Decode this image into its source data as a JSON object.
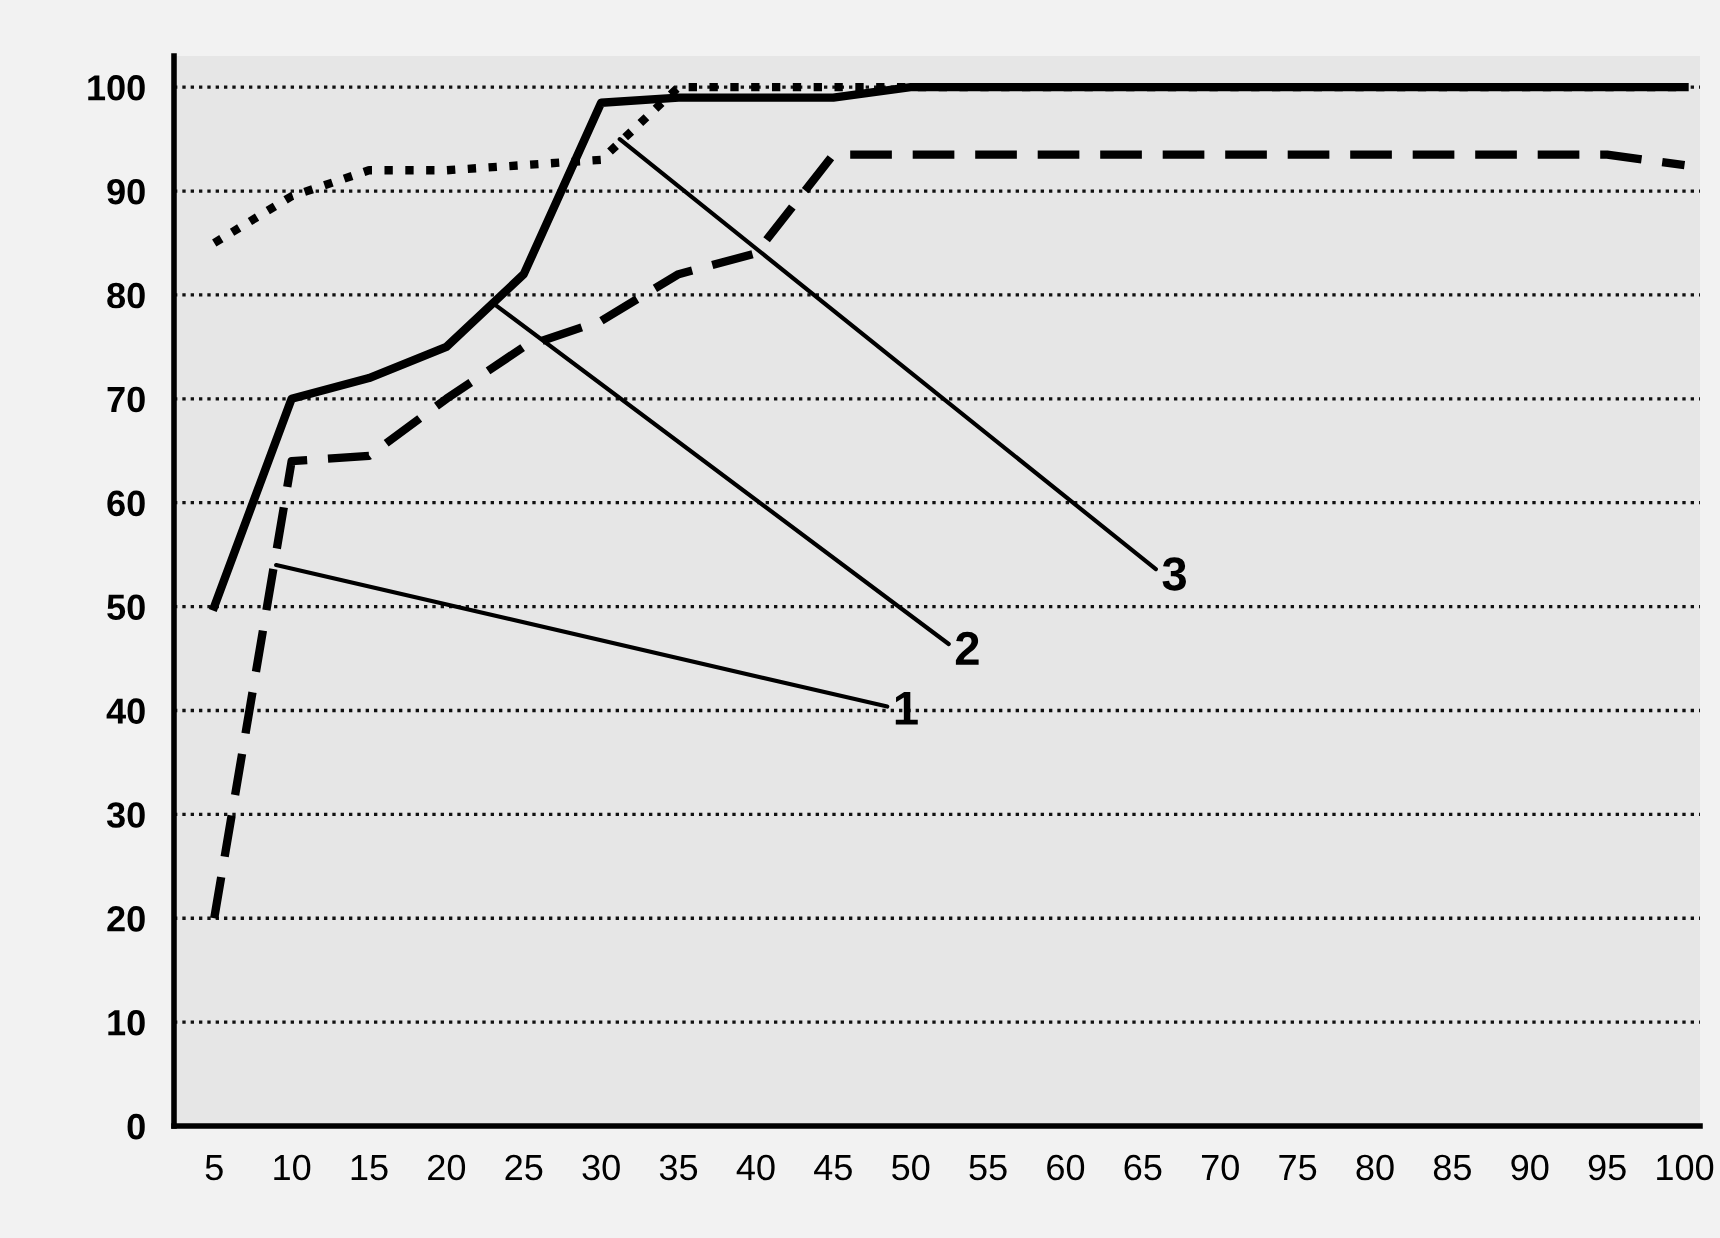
{
  "chart_data": {
    "type": "line",
    "x": [
      5,
      10,
      15,
      20,
      25,
      30,
      35,
      40,
      45,
      50,
      55,
      60,
      65,
      70,
      75,
      80,
      85,
      90,
      95,
      100
    ],
    "series": [
      {
        "color": "#000000",
        "line_style": "dotted",
        "values": [
          85,
          89.5,
          92,
          92,
          92.5,
          93,
          100,
          100,
          100,
          100,
          100,
          100,
          100,
          100,
          100,
          100,
          100,
          100,
          100,
          100
        ]
      },
      {
        "color": "#000000",
        "line_style": "dashed",
        "values": [
          20,
          64,
          64.5,
          70,
          75,
          77.5,
          82,
          84,
          93.5,
          93.5,
          93.5,
          93.5,
          93.5,
          93.5,
          93.5,
          93.5,
          93.5,
          93.5,
          93.5,
          92.5
        ]
      },
      {
        "color": "#000000",
        "line_style": "solid",
        "values": [
          50,
          70,
          72,
          75,
          82,
          98.5,
          99,
          99,
          99,
          100,
          100,
          100,
          100,
          100,
          100,
          100,
          100,
          100,
          100,
          100
        ]
      }
    ],
    "xlim": [
      2.4,
      101
    ],
    "xticks": [
      5,
      10,
      15,
      20,
      25,
      30,
      35,
      40,
      45,
      50,
      55,
      60,
      65,
      70,
      75,
      80,
      85,
      90,
      95,
      100
    ],
    "ylim": [
      0,
      103
    ],
    "yticks": [
      0,
      10,
      20,
      30,
      40,
      50,
      60,
      70,
      80,
      90,
      100
    ],
    "grid": "y",
    "marker": "none",
    "annotations": [
      {
        "text": "1",
        "x": 9,
        "y": 54
      },
      {
        "text": "2",
        "x": 23.2,
        "y": 79
      },
      {
        "text": "3",
        "x": 31.2,
        "y": 95
      }
    ]
  }
}
